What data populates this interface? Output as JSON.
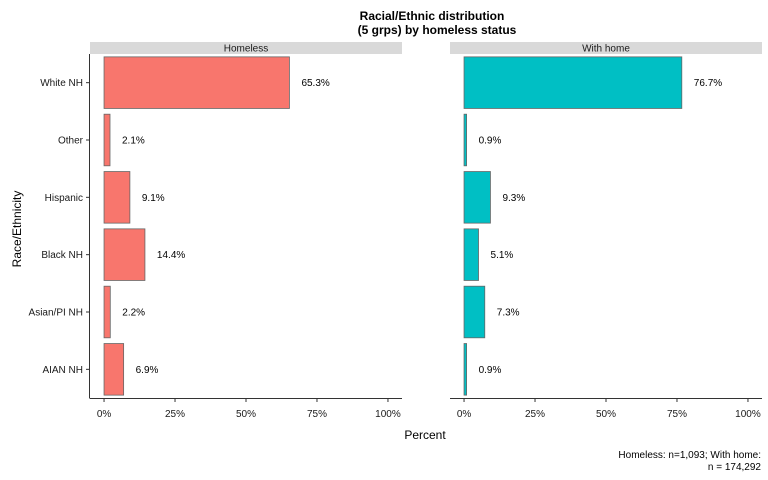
{
  "chart_data": {
    "type": "bar",
    "orientation": "horizontal",
    "title_lines": [
      "Racial/Ethnic distribution",
      "(5 grps) by homeless status"
    ],
    "categories": [
      "White NH",
      "Other",
      "Hispanic",
      "Black NH",
      "Asian/PI NH",
      "AIAN NH"
    ],
    "xlabel": "Percent",
    "ylabel": "Race/Ethnicity",
    "xlim": [
      0,
      100
    ],
    "xticks": [
      "0%",
      "25%",
      "50%",
      "75%",
      "100%"
    ],
    "grid": false,
    "legend": "none",
    "panels": [
      {
        "name": "Homeless",
        "color": "#F8766D",
        "values": [
          65.3,
          2.1,
          9.1,
          14.4,
          2.2,
          6.9
        ],
        "labels": [
          "65.3%",
          "2.1%",
          "9.1%",
          "14.4%",
          "2.2%",
          "6.9%"
        ]
      },
      {
        "name": "With home",
        "color": "#00BFC4",
        "values": [
          76.7,
          0.9,
          9.3,
          5.1,
          7.3,
          0.9
        ],
        "labels": [
          "76.7%",
          "0.9%",
          "9.3%",
          "5.1%",
          "7.3%",
          "0.9%"
        ]
      }
    ],
    "caption_lines": [
      "Homeless: n=1,093; With home:",
      "n = 174,292"
    ]
  }
}
